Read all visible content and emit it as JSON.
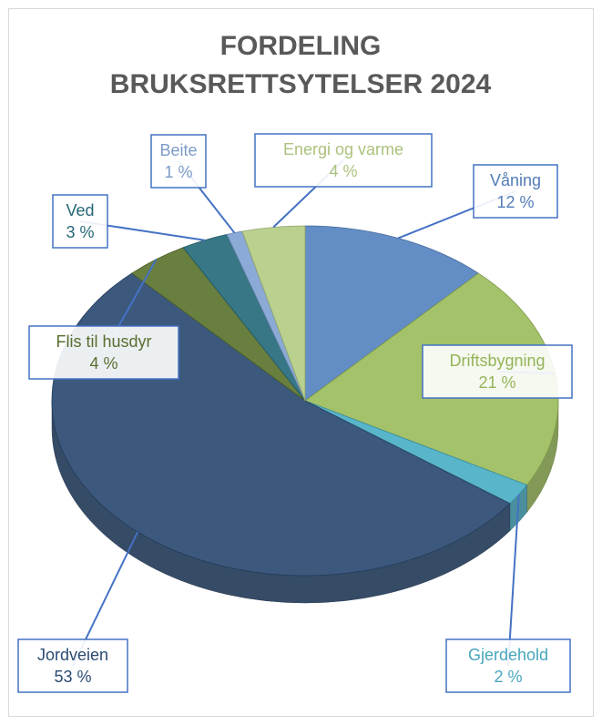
{
  "chart_data": {
    "type": "pie",
    "title": "FORDELING BRUKSRETTSYTELSER 2024",
    "categories": [
      "Våning",
      "Driftsbygning",
      "Gjerdehold",
      "Jordveien",
      "Flis til husdyr",
      "Ved",
      "Beite",
      "Energi og varme"
    ],
    "values": [
      12,
      21,
      2,
      53,
      4,
      3,
      1,
      4
    ],
    "value_labels": [
      "12 %",
      "21 %",
      "2 %",
      "53 %",
      "4 %",
      "3 %",
      "1 %",
      "4 %"
    ],
    "colors": [
      "#5683c0",
      "#9cbd5c",
      "#4aafc6",
      "#2b4b72",
      "#5c7430",
      "#276b7c",
      "#82a3d2",
      "#b4cc84"
    ]
  }
}
